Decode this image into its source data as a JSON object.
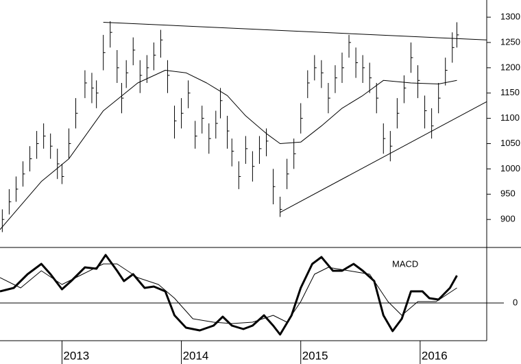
{
  "chart_data": [
    {
      "type": "ohlc",
      "color": "#000000",
      "x": [
        1,
        4,
        7,
        10,
        13,
        16,
        19,
        22,
        25,
        27,
        30,
        33,
        37,
        40,
        42,
        45,
        48,
        51,
        53,
        55,
        58,
        61,
        64,
        67,
        70,
        73,
        76,
        79,
        82,
        85,
        88,
        91,
        94,
        96,
        99,
        101,
        104,
        107,
        110,
        113,
        116,
        119,
        122,
        125,
        128,
        131,
        134,
        137,
        140,
        143,
        146,
        149,
        152,
        155,
        158,
        161,
        164,
        167,
        170,
        173,
        176,
        179,
        182,
        185,
        188,
        191,
        194,
        197,
        199
      ],
      "high": [
        920,
        960,
        985,
        1015,
        1045,
        1075,
        1090,
        1070,
        1040,
        1010,
        1080,
        1140,
        1195,
        1190,
        1175,
        1265,
        1292,
        1235,
        1170,
        1215,
        1260,
        1215,
        1225,
        1250,
        1275,
        1215,
        1125,
        1140,
        1175,
        1095,
        1125,
        1090,
        1115,
        1160,
        1105,
        1060,
        1015,
        1065,
        1035,
        1065,
        1080,
        1000,
        945,
        1020,
        1060,
        1130,
        1195,
        1225,
        1215,
        1170,
        1205,
        1230,
        1265,
        1240,
        1225,
        1210,
        1170,
        1090,
        1075,
        1140,
        1185,
        1250,
        1205,
        1145,
        1120,
        1170,
        1220,
        1270,
        1290
      ],
      "low": [
        875,
        910,
        935,
        965,
        995,
        1020,
        1040,
        1020,
        980,
        970,
        1020,
        1080,
        1140,
        1130,
        1120,
        1195,
        1240,
        1170,
        1110,
        1160,
        1205,
        1150,
        1170,
        1195,
        1220,
        1150,
        1060,
        1080,
        1120,
        1040,
        1070,
        1030,
        1060,
        1100,
        1040,
        1005,
        960,
        1010,
        975,
        1010,
        1025,
        930,
        905,
        960,
        1000,
        1070,
        1140,
        1175,
        1160,
        1110,
        1150,
        1170,
        1220,
        1180,
        1170,
        1150,
        1110,
        1030,
        1015,
        1080,
        1130,
        1190,
        1140,
        1080,
        1060,
        1110,
        1165,
        1210,
        1240
      ],
      "close": [
        900,
        935,
        960,
        990,
        1020,
        1050,
        1065,
        1045,
        1010,
        985,
        1050,
        1110,
        1170,
        1160,
        1150,
        1230,
        1270,
        1200,
        1140,
        1190,
        1235,
        1185,
        1200,
        1225,
        1255,
        1185,
        1095,
        1110,
        1150,
        1065,
        1100,
        1060,
        1090,
        1135,
        1075,
        1035,
        985,
        1040,
        1005,
        1040,
        1055,
        965,
        920,
        990,
        1030,
        1100,
        1170,
        1200,
        1190,
        1140,
        1180,
        1200,
        1250,
        1210,
        1200,
        1180,
        1140,
        1060,
        1045,
        1110,
        1160,
        1220,
        1175,
        1115,
        1085,
        1140,
        1195,
        1240,
        1265
      ],
      "moving_average": {
        "x": [
          0,
          18,
          30,
          45,
          60,
          72,
          81,
          90,
          99,
          107,
          116,
          122,
          131,
          140,
          149,
          158,
          167,
          179,
          191,
          199
        ],
        "values": [
          880,
          975,
          1020,
          1115,
          1170,
          1195,
          1190,
          1170,
          1145,
          1105,
          1070,
          1050,
          1053,
          1085,
          1120,
          1145,
          1175,
          1170,
          1168,
          1175
        ]
      },
      "trendlines": [
        {
          "x": [
            45,
            212
          ],
          "values": [
            1290,
            1255
          ]
        },
        {
          "x": [
            122,
            212
          ],
          "values": [
            914,
            1133
          ]
        }
      ],
      "xlim": [
        0,
        212
      ],
      "ylim": [
        846,
        1334
      ],
      "yticks": [
        900,
        950,
        1000,
        1050,
        1100,
        1150,
        1200,
        1250,
        1300
      ]
    },
    {
      "type": "line",
      "series": [
        {
          "name": "MACD",
          "color": "#000000",
          "line_width": 3,
          "x": [
            0,
            6,
            12,
            18,
            22,
            27,
            31,
            37,
            42,
            46,
            51,
            54,
            58,
            63,
            67,
            72,
            76,
            81,
            87,
            93,
            97,
            101,
            106,
            110,
            115,
            119,
            122,
            127,
            131,
            136,
            140,
            145,
            149,
            154,
            158,
            163,
            167,
            171,
            175,
            179,
            184,
            187,
            191,
            196,
            199
          ],
          "values": [
            17,
            22,
            42,
            57,
            42,
            20,
            32,
            52,
            50,
            70,
            47,
            32,
            42,
            22,
            24,
            17,
            -18,
            -36,
            -40,
            -33,
            -20,
            -33,
            -38,
            -33,
            -18,
            -33,
            -46,
            -18,
            22,
            57,
            67,
            47,
            47,
            57,
            47,
            32,
            -18,
            -41,
            -23,
            17,
            17,
            7,
            5,
            22,
            40
          ]
        },
        {
          "color": "#000000",
          "line_width": 1,
          "x": [
            0,
            9,
            18,
            27,
            36,
            45,
            51,
            60,
            69,
            76,
            84,
            93,
            101,
            110,
            119,
            125,
            131,
            137,
            143,
            152,
            161,
            169,
            175,
            182,
            190,
            199
          ],
          "values": [
            37,
            22,
            47,
            27,
            42,
            57,
            57,
            37,
            27,
            7,
            -23,
            -28,
            -30,
            -28,
            -18,
            -28,
            2,
            42,
            52,
            47,
            42,
            2,
            -18,
            2,
            2,
            22
          ]
        }
      ],
      "xlim": [
        0,
        212
      ],
      "ylim": [
        -55,
        80
      ],
      "yticks": [
        0
      ],
      "xticks": [
        {
          "value": 27,
          "label": "2013"
        },
        {
          "value": 79,
          "label": "2014"
        },
        {
          "value": 131,
          "label": "2015"
        },
        {
          "value": 183,
          "label": "2016"
        }
      ]
    }
  ]
}
